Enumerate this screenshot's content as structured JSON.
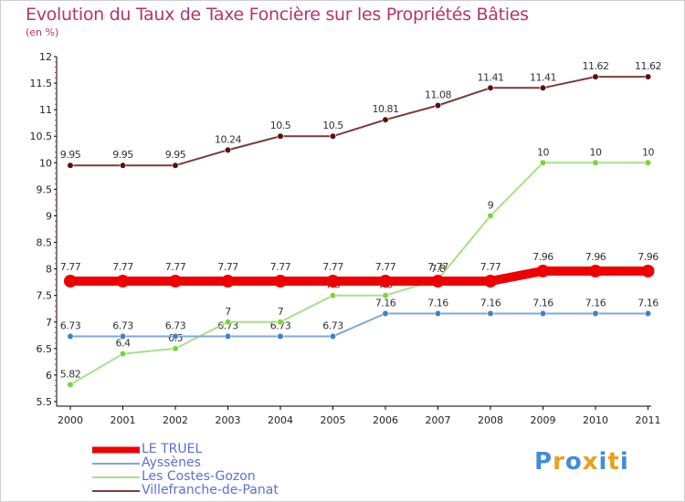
{
  "header": {
    "title": "Evolution du Taux de Taxe Foncière sur les Propriétés Bâties",
    "unit": "(en %)"
  },
  "logo": {
    "text": "Proxiti",
    "letters": [
      {
        "ch": "P",
        "color": "#3f8fd6"
      },
      {
        "ch": "r",
        "color": "#e9a11b"
      },
      {
        "ch": "o",
        "color": "#3f8fd6"
      },
      {
        "ch": "x",
        "color": "#e9a11b"
      },
      {
        "ch": "i",
        "color": "#3f8fd6"
      },
      {
        "ch": "t",
        "color": "#e9a11b"
      },
      {
        "ch": "i",
        "color": "#3f8fd6"
      }
    ]
  },
  "chart_data": {
    "type": "line",
    "title": "Evolution du Taux de Taxe Foncière sur les Propriétés Bâties",
    "ylabel": "(en %)",
    "xlabel": "",
    "ylim": [
      5.5,
      12
    ],
    "yticks": [
      "5.5",
      "6",
      "6.5",
      "7",
      "7.5",
      "8",
      "8.5",
      "9",
      "9.5",
      "10",
      "10.5",
      "11",
      "11.5",
      "12"
    ],
    "x": [
      "2000",
      "2001",
      "2002",
      "2003",
      "2004",
      "2005",
      "2006",
      "2007",
      "2008",
      "2009",
      "2010",
      "2011"
    ],
    "series": [
      {
        "name": "Villefranche-de-Panat",
        "color": "#7a3b3b",
        "marker": "#5a1010",
        "values": [
          9.95,
          9.95,
          9.95,
          10.24,
          10.5,
          10.5,
          10.81,
          11.08,
          11.41,
          11.41,
          11.62,
          11.62
        ],
        "labels": [
          "9.95",
          "9.95",
          "9.95",
          "10.24",
          "10.5",
          "10.5",
          "10.81",
          "11.08",
          "11.41",
          "11.41",
          "11.62",
          "11.62"
        ]
      },
      {
        "name": "Les Costes-Gozon",
        "color": "#a8e08a",
        "marker": "#7ed23e",
        "values": [
          5.82,
          6.4,
          6.5,
          7,
          7,
          7.5,
          7.5,
          7.8,
          9,
          10,
          10,
          10
        ],
        "labels": [
          "5.82",
          "6.4",
          "6.5",
          "7",
          "7",
          "7.5",
          "7.5",
          "7.8",
          "9",
          "10",
          "10",
          "10"
        ]
      },
      {
        "name": "Ayssènes",
        "color": "#7fa8d8",
        "marker": "#3f82c8",
        "values": [
          6.73,
          6.73,
          6.73,
          6.73,
          6.73,
          6.73,
          7.16,
          7.16,
          7.16,
          7.16,
          7.16,
          7.16
        ],
        "labels": [
          "6.73",
          "6.73",
          "6.73",
          "6.73",
          "6.73",
          "6.73",
          "7.16",
          "7.16",
          "7.16",
          "7.16",
          "7.16",
          "7.16"
        ]
      },
      {
        "name": "LE TRUEL",
        "color": "#ee0000",
        "marker": "#ee0000",
        "values": [
          7.77,
          7.77,
          7.77,
          7.77,
          7.77,
          7.77,
          7.77,
          7.77,
          7.77,
          7.96,
          7.96,
          7.96
        ],
        "labels": [
          "7.77",
          "7.77",
          "7.77",
          "7.77",
          "7.77",
          "7.77",
          "7.77",
          "7.77",
          "7.77",
          "7.96",
          "7.96",
          "7.96"
        ]
      }
    ],
    "legend": [
      "LE TRUEL",
      "Ayssènes",
      "Les Costes-Gozon",
      "Villefranche-de-Panat"
    ],
    "legend_position": "bottom-left",
    "grid": false
  }
}
